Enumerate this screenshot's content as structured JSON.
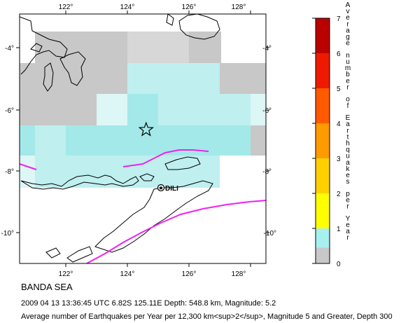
{
  "map": {
    "region_name": "BANDA SEA",
    "lon_ticks": [
      "122°",
      "124°",
      "126°",
      "128°"
    ],
    "lat_ticks": [
      "-4°",
      "-6°",
      "-8°",
      "-10°"
    ],
    "extent": {
      "lon": [
        121,
        129
      ],
      "lat": [
        -11,
        -3.2
      ]
    },
    "place_labels": [
      {
        "name": "DILI",
        "lon": 125.58,
        "lat": -8.56
      }
    ],
    "epicenter": {
      "lon": 125.11,
      "lat": -6.82,
      "symbol": "star-icon"
    },
    "grid_cell_colors": {
      "gray": "#c8c8c8",
      "cyan_light": "#ddf6f6",
      "cyan_mid": "#bfefef",
      "cyan_dark": "#a4e9e9"
    }
  },
  "colorbar": {
    "title": "Average number of Earthquakes per Year",
    "ticks": [
      "0",
      "1",
      "2",
      "3",
      "4",
      "5",
      "6",
      "7"
    ],
    "colors": [
      "#c8c8c8",
      "#a8efef",
      "#ffff00",
      "#ffd000",
      "#ff9a00",
      "#ff5a00",
      "#ee1a00",
      "#bb0000",
      "#880000"
    ]
  },
  "captions": {
    "event": "2009 04 13 13:36:45 UTC 6.82S 125.11E Depth: 548.8 km, Magnitude: 5.2",
    "description": "Average number of Earthquakes per Year per 12,300 km<sup>2</sup>, Magnitude 5 and Greater, Depth 300"
  }
}
